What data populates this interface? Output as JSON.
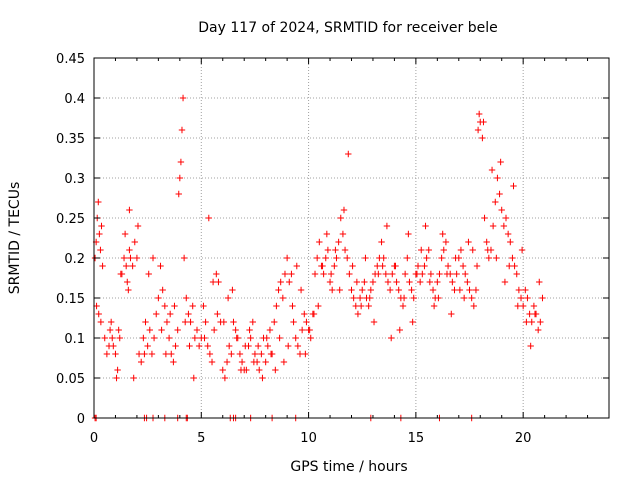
{
  "chart_data": {
    "type": "scatter",
    "title": "Day 117 of 2024, SRMTID for receiver bele",
    "xlabel": "GPS time / hours",
    "ylabel": "SRMTID / TECUs",
    "xlim": [
      0,
      24
    ],
    "ylim": [
      0,
      0.45
    ],
    "x_ticks": [
      0,
      5,
      10,
      15,
      20
    ],
    "x_tick_labels": [
      "0",
      "5",
      "10",
      "15",
      "20"
    ],
    "y_ticks": [
      0,
      0.05,
      0.1,
      0.15,
      0.2,
      0.25,
      0.3,
      0.35,
      0.4,
      0.45
    ],
    "y_tick_labels": [
      "0",
      "0.05",
      "0.1",
      "0.15",
      "0.2",
      "0.25",
      "0.3",
      "0.35",
      "0.4",
      "0.45"
    ],
    "grid": true,
    "marker": "+",
    "color": "#ff0000",
    "series": [
      {
        "name": "SRMTID",
        "x": [
          0.05,
          0.1,
          0.15,
          0.2,
          0.25,
          0.3,
          0.35,
          0.4,
          0.5,
          0.6,
          0.7,
          0.75,
          0.8,
          0.85,
          0.9,
          1.0,
          1.05,
          1.1,
          1.15,
          1.2,
          1.3,
          1.4,
          1.5,
          1.55,
          1.6,
          1.65,
          1.7,
          1.8,
          1.9,
          2.0,
          2.05,
          2.1,
          2.2,
          2.3,
          2.4,
          2.5,
          2.6,
          2.7,
          2.8,
          2.9,
          3.0,
          3.1,
          3.2,
          3.3,
          3.4,
          3.5,
          3.6,
          3.7,
          3.8,
          3.9,
          3.95,
          4.0,
          4.05,
          4.1,
          4.15,
          4.2,
          4.3,
          4.4,
          4.5,
          4.6,
          4.7,
          4.8,
          4.9,
          5.0,
          5.1,
          5.2,
          5.3,
          5.4,
          5.5,
          5.6,
          5.7,
          5.8,
          5.9,
          6.0,
          6.1,
          6.2,
          6.3,
          6.4,
          6.5,
          6.6,
          6.7,
          6.8,
          6.9,
          7.0,
          7.1,
          7.2,
          7.3,
          7.4,
          7.5,
          7.6,
          7.7,
          7.8,
          7.9,
          8.0,
          8.1,
          8.2,
          8.3,
          8.4,
          8.5,
          8.6,
          8.7,
          8.8,
          8.9,
          9.0,
          9.1,
          9.2,
          9.3,
          9.4,
          9.5,
          9.6,
          9.7,
          9.8,
          9.9,
          10.0,
          10.1,
          10.2,
          10.3,
          10.4,
          10.5,
          10.6,
          10.7,
          10.8,
          10.9,
          11.0,
          11.1,
          11.2,
          11.3,
          11.4,
          11.5,
          11.6,
          11.7,
          11.8,
          11.9,
          12.0,
          12.1,
          12.2,
          12.3,
          12.4,
          12.5,
          12.6,
          12.7,
          12.8,
          12.9,
          13.0,
          13.1,
          13.2,
          13.3,
          13.4,
          13.5,
          13.6,
          13.7,
          13.8,
          13.9,
          14.0,
          14.1,
          14.2,
          14.3,
          14.4,
          14.5,
          14.6,
          14.7,
          14.8,
          14.9,
          15.0,
          15.1,
          15.2,
          15.3,
          15.4,
          15.5,
          15.6,
          15.7,
          15.8,
          15.9,
          16.0,
          16.1,
          16.2,
          16.3,
          16.4,
          16.5,
          16.6,
          16.7,
          16.8,
          16.9,
          17.0,
          17.1,
          17.2,
          17.3,
          17.4,
          17.5,
          17.6,
          17.7,
          17.8,
          17.85,
          17.9,
          17.95,
          18.0,
          18.1,
          18.2,
          18.3,
          18.4,
          18.5,
          18.6,
          18.7,
          18.8,
          18.9,
          19.0,
          19.1,
          19.2,
          19.3,
          19.4,
          19.5,
          19.6,
          19.7,
          19.8,
          19.9,
          20.0,
          20.1,
          20.2,
          20.3,
          20.4,
          20.5,
          20.6,
          20.7,
          20.8,
          20.9,
          0.12,
          0.22,
          0.32,
          1.25,
          1.45,
          1.65,
          1.85,
          2.35,
          2.55,
          2.75,
          3.15,
          3.35,
          3.55,
          3.75,
          4.25,
          4.45,
          4.65,
          5.15,
          5.35,
          5.55,
          5.75,
          6.05,
          6.25,
          6.45,
          6.65,
          6.85,
          7.05,
          7.25,
          7.45,
          7.65,
          7.85,
          8.05,
          8.25,
          8.45,
          8.65,
          8.85,
          9.05,
          9.25,
          9.45,
          9.65,
          9.85,
          10.05,
          10.25,
          10.45,
          10.65,
          10.85,
          11.05,
          11.25,
          11.45,
          11.65,
          11.85,
          12.05,
          12.25,
          12.45,
          12.65,
          12.85,
          13.05,
          13.25,
          13.45,
          13.65,
          13.85,
          14.05,
          14.25,
          14.45,
          14.65,
          14.85,
          15.05,
          15.25,
          15.45,
          15.65,
          15.85,
          16.05,
          16.25,
          16.45,
          16.65,
          16.85,
          17.05,
          17.25,
          17.45,
          17.65,
          18.15,
          18.35,
          18.55,
          18.75,
          18.95,
          19.15,
          19.35,
          19.55,
          19.75,
          19.95,
          20.15,
          20.35,
          20.55,
          20.75
        ],
        "y": [
          0.2,
          0.22,
          0.25,
          0.27,
          0.23,
          0.21,
          0.24,
          0.19,
          0.1,
          0.08,
          0.09,
          0.11,
          0.12,
          0.1,
          0.09,
          0.08,
          0.05,
          0.06,
          0.11,
          0.1,
          0.18,
          0.2,
          0.19,
          0.17,
          0.16,
          0.21,
          0.2,
          0.19,
          0.22,
          0.2,
          0.24,
          0.08,
          0.07,
          0.1,
          0.12,
          0.09,
          0.11,
          0.08,
          0.1,
          0.13,
          0.15,
          0.19,
          0.16,
          0.14,
          0.12,
          0.1,
          0.08,
          0.07,
          0.09,
          0.11,
          0.28,
          0.3,
          0.32,
          0.36,
          0.4,
          0.2,
          0.15,
          0.13,
          0.12,
          0.14,
          0.1,
          0.11,
          0.09,
          0.1,
          0.14,
          0.12,
          0.09,
          0.08,
          0.07,
          0.11,
          0.18,
          0.17,
          0.12,
          0.06,
          0.05,
          0.07,
          0.09,
          0.08,
          0.12,
          0.11,
          0.1,
          0.08,
          0.07,
          0.06,
          0.06,
          0.09,
          0.1,
          0.12,
          0.08,
          0.07,
          0.06,
          0.08,
          0.1,
          0.07,
          0.09,
          0.11,
          0.08,
          0.12,
          0.14,
          0.16,
          0.17,
          0.15,
          0.18,
          0.2,
          0.17,
          0.18,
          0.12,
          0.1,
          0.09,
          0.08,
          0.11,
          0.13,
          0.12,
          0.11,
          0.1,
          0.13,
          0.18,
          0.2,
          0.22,
          0.19,
          0.18,
          0.2,
          0.21,
          0.17,
          0.16,
          0.19,
          0.2,
          0.22,
          0.25,
          0.23,
          0.21,
          0.2,
          0.18,
          0.16,
          0.15,
          0.14,
          0.13,
          0.15,
          0.16,
          0.17,
          0.15,
          0.14,
          0.16,
          0.17,
          0.18,
          0.19,
          0.2,
          0.22,
          0.2,
          0.18,
          0.17,
          0.16,
          0.18,
          0.19,
          0.17,
          0.16,
          0.15,
          0.14,
          0.18,
          0.2,
          0.17,
          0.16,
          0.15,
          0.18,
          0.19,
          0.17,
          0.18,
          0.19,
          0.2,
          0.21,
          0.18,
          0.16,
          0.15,
          0.17,
          0.18,
          0.2,
          0.21,
          0.22,
          0.19,
          0.18,
          0.17,
          0.16,
          0.18,
          0.2,
          0.21,
          0.19,
          0.18,
          0.17,
          0.16,
          0.15,
          0.14,
          0.16,
          0.19,
          0.36,
          0.38,
          0.37,
          0.35,
          0.25,
          0.22,
          0.2,
          0.21,
          0.24,
          0.27,
          0.3,
          0.28,
          0.26,
          0.24,
          0.25,
          0.23,
          0.22,
          0.2,
          0.19,
          0.18,
          0.16,
          0.15,
          0.14,
          0.16,
          0.15,
          0.13,
          0.12,
          0.14,
          0.13,
          0.11,
          0.12,
          0.15,
          0.14,
          0.13,
          0.12,
          0.18,
          0.23,
          0.26,
          0.05,
          0.08,
          0.18,
          0.2,
          0.11,
          0.08,
          0.13,
          0.14,
          0.12,
          0.09,
          0.05,
          0.1,
          0.25,
          0.17,
          0.13,
          0.12,
          0.15,
          0.16,
          0.1,
          0.06,
          0.09,
          0.11,
          0.07,
          0.09,
          0.05,
          0.1,
          0.08,
          0.06,
          0.1,
          0.07,
          0.09,
          0.14,
          0.19,
          0.16,
          0.08,
          0.11,
          0.13,
          0.14,
          0.19,
          0.23,
          0.18,
          0.21,
          0.16,
          0.26,
          0.33,
          0.19,
          0.17,
          0.14,
          0.2,
          0.15,
          0.12,
          0.18,
          0.19,
          0.24,
          0.1,
          0.19,
          0.11,
          0.15,
          0.23,
          0.12,
          0.18,
          0.21,
          0.24,
          0.17,
          0.14,
          0.15,
          0.23,
          0.18,
          0.13,
          0.2,
          0.16,
          0.15,
          0.22,
          0.21,
          0.37,
          0.21,
          0.31,
          0.2,
          0.32,
          0.17,
          0.19,
          0.29,
          0.14,
          0.21,
          0.12,
          0.09,
          0.13,
          0.17
        ],
        "zero_x": [
          0.05,
          0.1,
          2.35,
          2.45,
          2.75,
          3.3,
          3.9,
          4.3,
          4.35,
          6.35,
          6.5,
          6.6,
          7.3,
          8.3,
          9.4,
          12.9,
          14.3,
          16.1,
          17.6
        ]
      }
    ]
  }
}
